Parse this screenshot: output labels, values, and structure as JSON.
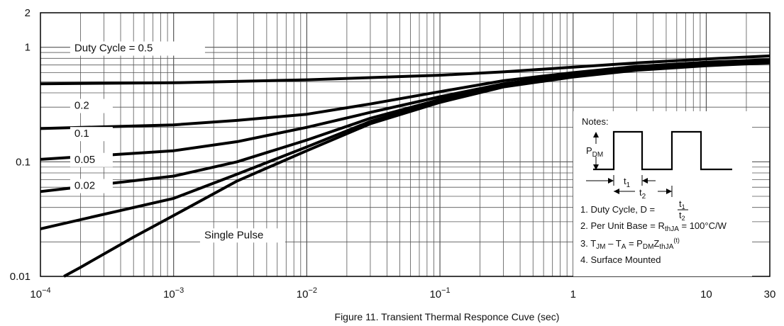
{
  "chart_data": {
    "type": "line",
    "caption": "Figure 11. Transient Thermal Responce Cuve (sec)",
    "x_scale": "log",
    "y_scale": "log",
    "xlim": [
      0.0001,
      30
    ],
    "ylim": [
      0.01,
      2
    ],
    "x_tick_labels": [
      {
        "value": 0.0001,
        "base": "10",
        "exp": "−4"
      },
      {
        "value": 0.001,
        "base": "10",
        "exp": "−3"
      },
      {
        "value": 0.01,
        "base": "10",
        "exp": "−2"
      },
      {
        "value": 0.1,
        "base": "10",
        "exp": "−1"
      },
      {
        "value": 1,
        "base": "1",
        "exp": ""
      },
      {
        "value": 10,
        "base": "10",
        "exp": ""
      },
      {
        "value": 30,
        "base": "30",
        "exp": ""
      }
    ],
    "y_tick_labels": [
      {
        "value": 2,
        "label": "2"
      },
      {
        "value": 1,
        "label": "1"
      },
      {
        "value": 0.1,
        "label": "0.1"
      },
      {
        "value": 0.01,
        "label": "0.01"
      }
    ],
    "grid": true,
    "series": [
      {
        "name": "Duty Cycle = 0.5",
        "x": [
          0.0001,
          0.001,
          0.01,
          0.1,
          0.3,
          1,
          3,
          10,
          30
        ],
        "y": [
          0.48,
          0.49,
          0.52,
          0.57,
          0.61,
          0.67,
          0.73,
          0.79,
          0.84
        ]
      },
      {
        "name": "0.2",
        "x": [
          0.0001,
          0.001,
          0.003,
          0.01,
          0.03,
          0.1,
          0.3,
          1,
          3,
          10,
          30
        ],
        "y": [
          0.195,
          0.21,
          0.23,
          0.26,
          0.32,
          0.41,
          0.51,
          0.6,
          0.68,
          0.74,
          0.78
        ]
      },
      {
        "name": "0.1",
        "x": [
          0.0001,
          0.001,
          0.003,
          0.01,
          0.03,
          0.1,
          0.3,
          1,
          3,
          10,
          30
        ],
        "y": [
          0.105,
          0.125,
          0.15,
          0.2,
          0.27,
          0.37,
          0.48,
          0.58,
          0.66,
          0.72,
          0.76
        ]
      },
      {
        "name": "0.05",
        "x": [
          0.0001,
          0.001,
          0.003,
          0.01,
          0.03,
          0.1,
          0.3,
          1,
          3,
          10,
          30
        ],
        "y": [
          0.055,
          0.075,
          0.1,
          0.155,
          0.24,
          0.35,
          0.47,
          0.57,
          0.65,
          0.71,
          0.75
        ]
      },
      {
        "name": "0.02",
        "x": [
          0.0001,
          0.001,
          0.003,
          0.01,
          0.03,
          0.1,
          0.3,
          1,
          3,
          10,
          30
        ],
        "y": [
          0.026,
          0.048,
          0.078,
          0.135,
          0.225,
          0.34,
          0.46,
          0.56,
          0.64,
          0.7,
          0.74
        ]
      },
      {
        "name": "Single Pulse",
        "x": [
          0.00015,
          0.0002,
          0.0005,
          0.001,
          0.003,
          0.01,
          0.03,
          0.1,
          0.3,
          1,
          3,
          10,
          30
        ],
        "y": [
          0.01,
          0.012,
          0.022,
          0.034,
          0.068,
          0.125,
          0.215,
          0.33,
          0.45,
          0.55,
          0.63,
          0.69,
          0.73
        ]
      }
    ],
    "series_labels": [
      "Duty Cycle = 0.5",
      "0.2",
      "0.1",
      "0.05",
      "0.02",
      "Single Pulse"
    ],
    "notes": {
      "title": "Notes:",
      "pdm_base": "P",
      "pdm_sub": "DM",
      "t1_base": "t",
      "t1_sub": "1",
      "t2_base": "t",
      "t2_sub": "2",
      "note1_prefix": "1. Duty Cycle, D = ",
      "note2_prefix": "2. Per Unit Base = R",
      "note2_sub": "thJA",
      "note2_suffix": " = 100°C/W",
      "note3_a": "3. T",
      "note3_a_sub": "JM",
      "note3_b": " – T",
      "note3_b_sub": "A",
      "note3_c": " = P",
      "note3_c_sub": "DM",
      "note3_d": "Z",
      "note3_d_sub": "thJA",
      "note3_sup": "(t)",
      "note4": "4. Surface Mounted"
    }
  }
}
